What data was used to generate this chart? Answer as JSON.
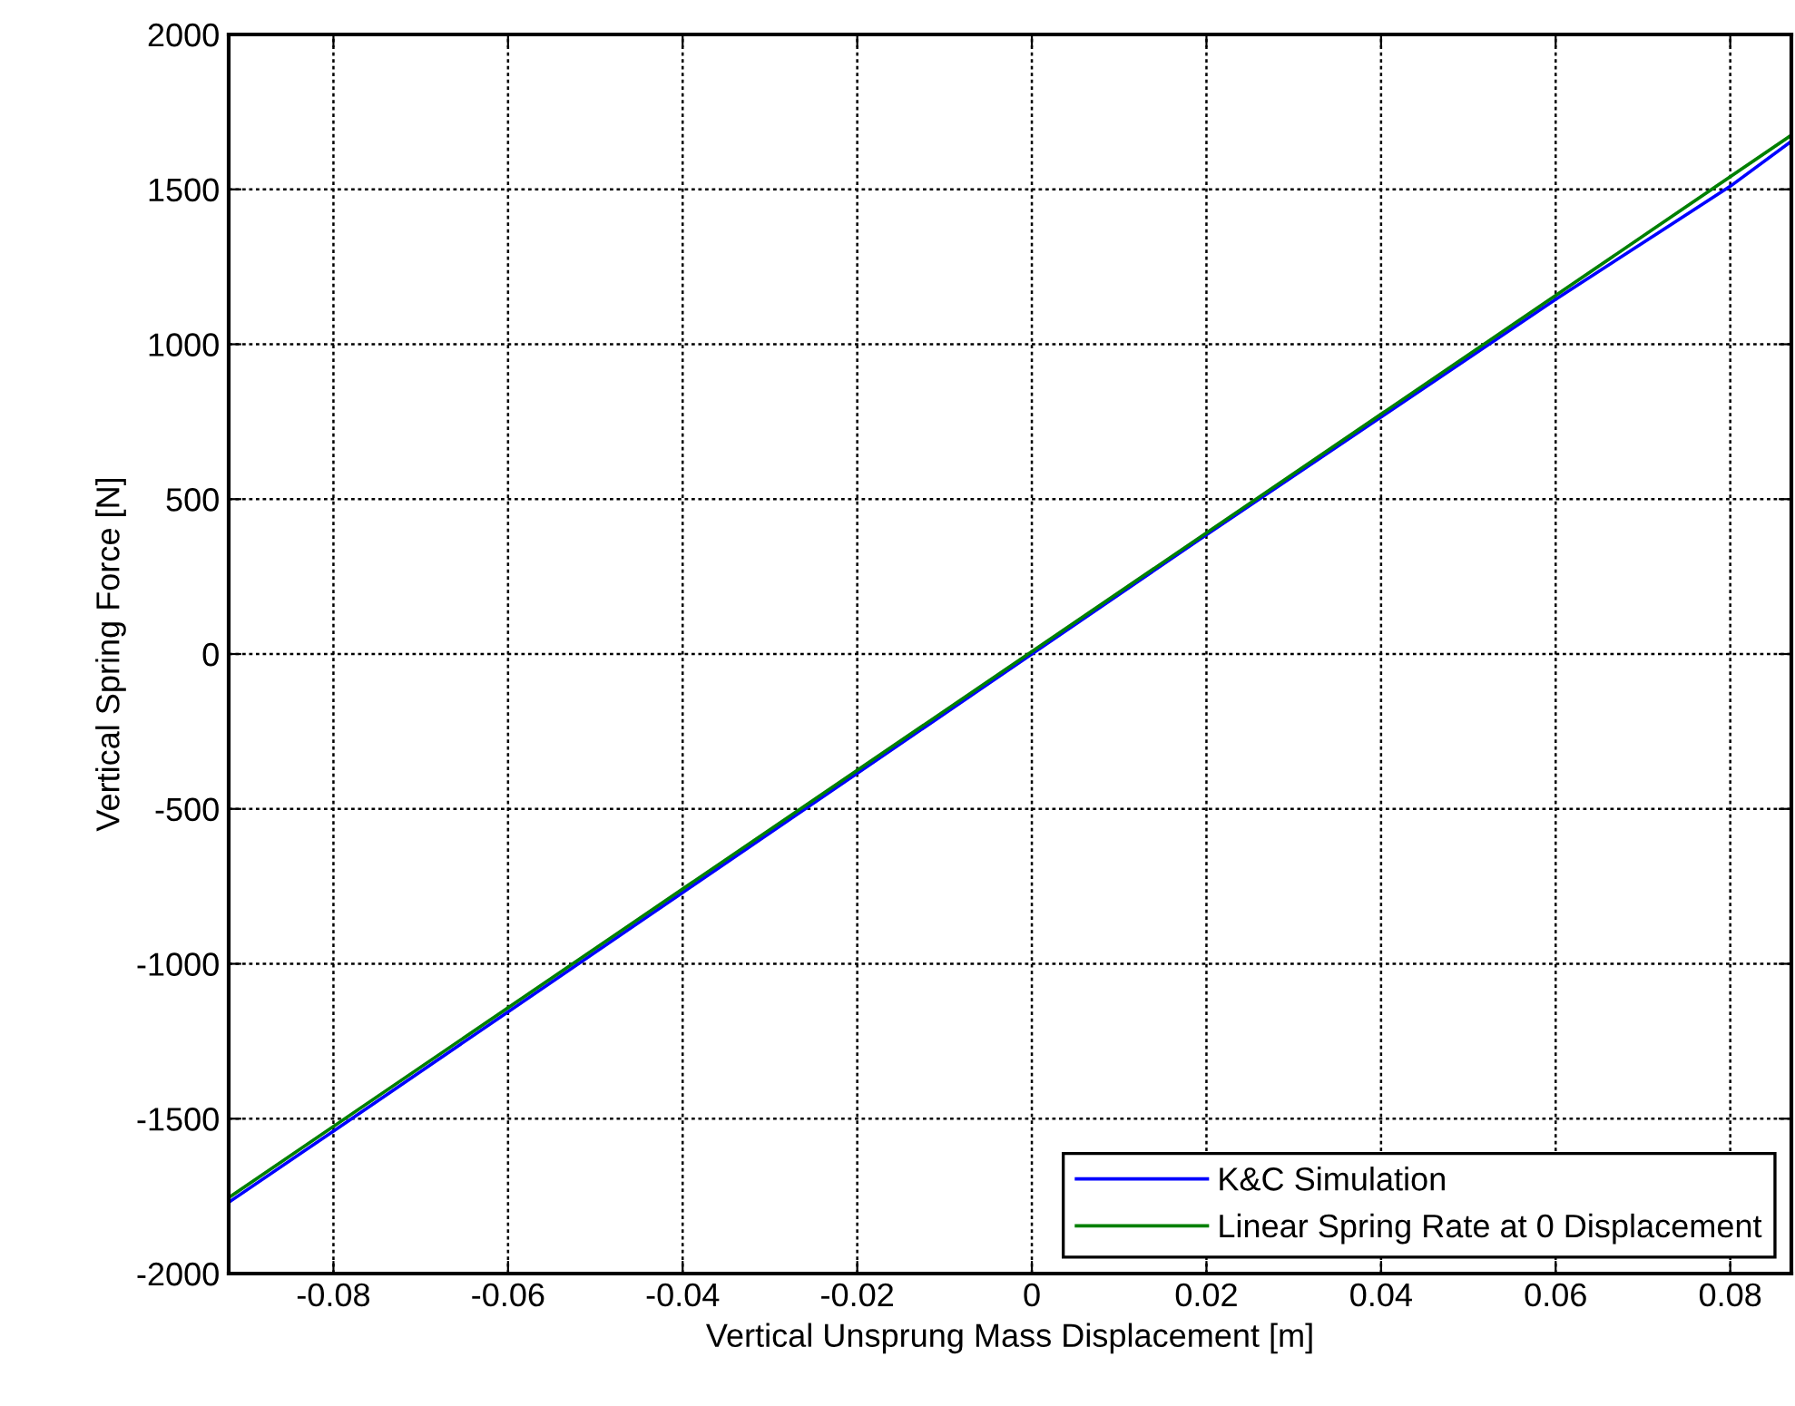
{
  "chart_data": {
    "type": "line",
    "xlabel": "Vertical Unsprung Mass Displacement [m]",
    "ylabel": "Vertical Spring Force [N]",
    "xlim": [
      -0.092,
      0.087
    ],
    "ylim": [
      -2000,
      2000
    ],
    "xticks": [
      -0.08,
      -0.06,
      -0.04,
      -0.02,
      0,
      0.02,
      0.04,
      0.06,
      0.08
    ],
    "yticks": [
      -2000,
      -1500,
      -1000,
      -500,
      0,
      500,
      1000,
      1500,
      2000
    ],
    "grid": true,
    "legend": "bottom right",
    "line_style": "solid",
    "marker": "none",
    "series": [
      {
        "name": "K&C Simulation",
        "color": "#0000ff",
        "x": [
          -0.092,
          -0.08,
          -0.06,
          -0.04,
          -0.02,
          0,
          0.02,
          0.04,
          0.06,
          0.08,
          0.087
        ],
        "values": [
          -1770,
          -1540,
          -1155,
          -770,
          -385,
          0,
          385,
          765,
          1145,
          1510,
          1655
        ]
      },
      {
        "name": "Linear Spring Rate at 0 Displacement",
        "color": "#008000",
        "x": [
          -0.092,
          0.087
        ],
        "values": [
          -1755,
          1675
        ]
      }
    ]
  }
}
